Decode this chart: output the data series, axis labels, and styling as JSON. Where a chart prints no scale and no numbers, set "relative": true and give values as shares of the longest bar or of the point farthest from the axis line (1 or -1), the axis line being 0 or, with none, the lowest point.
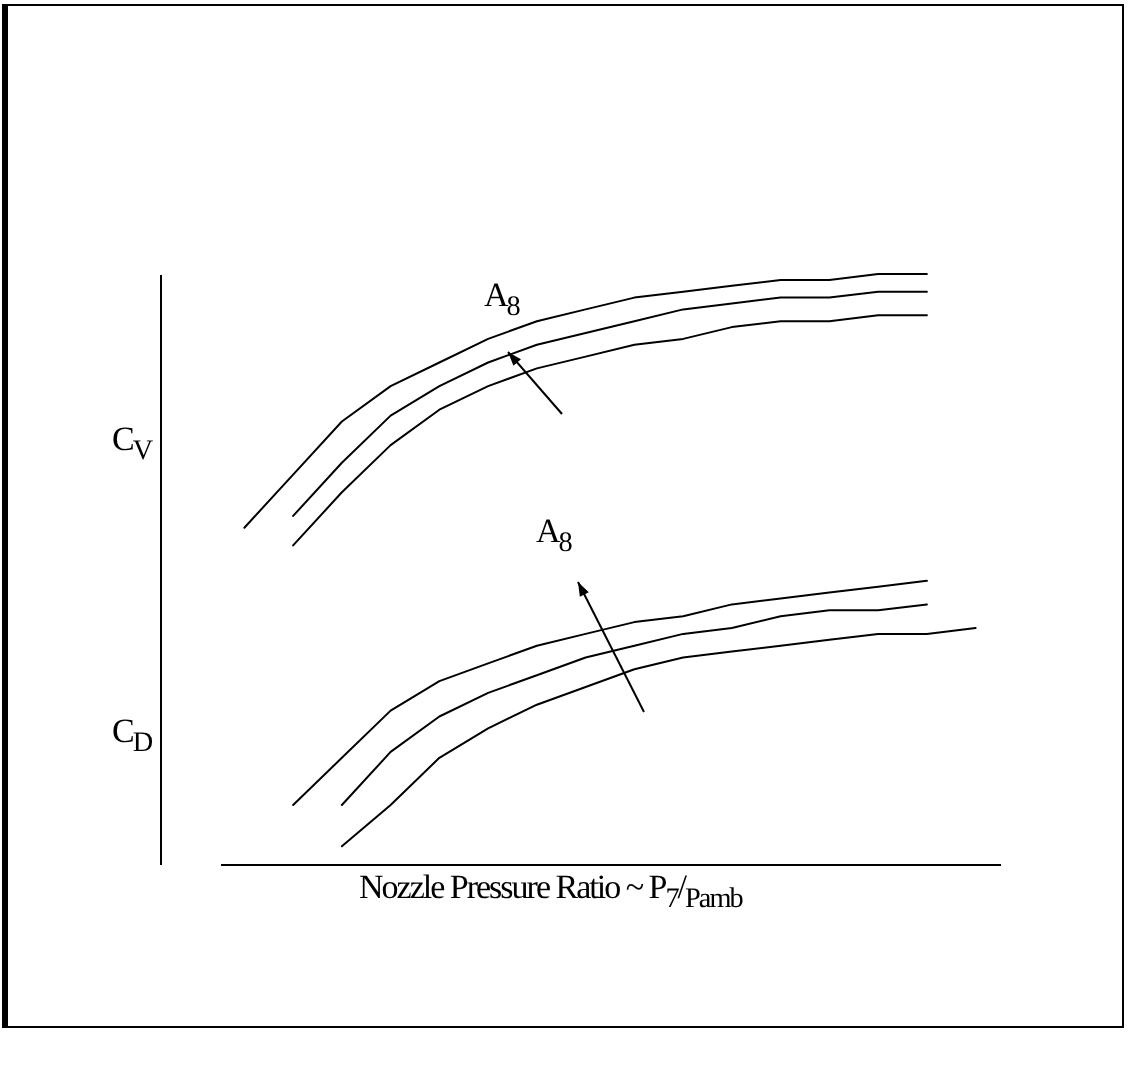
{
  "chart_data": {
    "type": "line",
    "relative": true,
    "xlabel": "Nozzle Pressure Ratio ~ P$_{7}$/$_{Pamb}$",
    "categories": [
      null,
      null,
      null,
      null,
      null,
      null,
      null,
      null,
      null,
      null,
      null,
      null,
      null,
      null,
      null,
      null
    ],
    "series": [
      {
        "color": "#000000",
        "values": [
          0.57,
          0.66,
          0.75,
          0.81,
          0.85,
          0.89,
          0.92,
          0.94,
          0.96,
          0.97,
          0.98,
          0.99,
          0.99,
          1,
          1,
          null
        ]
      },
      {
        "color": "#000000",
        "values": [
          null,
          0.59,
          0.68,
          0.76,
          0.81,
          0.85,
          0.88,
          0.9,
          0.92,
          0.94,
          0.95,
          0.96,
          0.96,
          0.97,
          0.97,
          null
        ]
      },
      {
        "color": "#000000",
        "values": [
          null,
          0.54,
          0.63,
          0.71,
          0.77,
          0.81,
          0.84,
          0.86,
          0.88,
          0.89,
          0.91,
          0.92,
          0.92,
          0.93,
          0.93,
          null
        ]
      },
      {
        "color": "#000000",
        "values": [
          null,
          0.1,
          0.18,
          0.26,
          0.31,
          0.34,
          0.37,
          0.39,
          0.41,
          0.42,
          0.44,
          0.45,
          0.46,
          0.47,
          0.48,
          null
        ]
      },
      {
        "color": "#000000",
        "values": [
          null,
          null,
          0.1,
          0.19,
          0.25,
          0.29,
          0.32,
          0.35,
          0.37,
          0.39,
          0.4,
          0.42,
          0.43,
          0.43,
          0.44,
          null
        ]
      },
      {
        "color": "#000000",
        "values": [
          null,
          null,
          0.03,
          0.1,
          0.18,
          0.23,
          0.27,
          0.3,
          0.33,
          0.35,
          0.36,
          0.37,
          0.38,
          0.39,
          0.39,
          0.4
        ]
      }
    ],
    "annotations": [
      "C$_{V}$",
      "C$_{D}$",
      "A$_{8}$",
      "A$_{8}$"
    ],
    "grid": false
  }
}
